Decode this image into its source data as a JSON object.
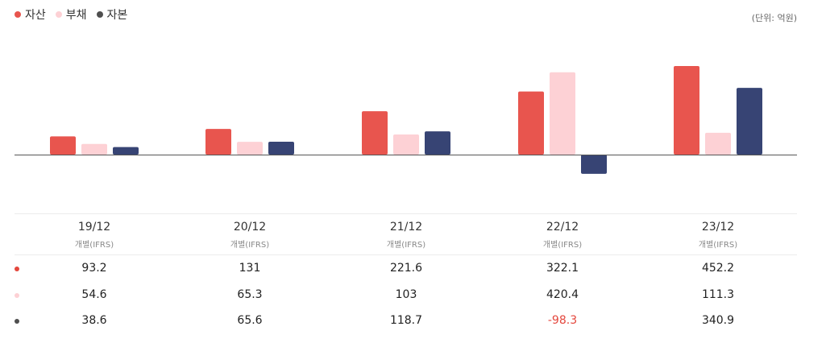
{
  "unit": "(단위: 억원)",
  "colors": {
    "assets": "#e8554e",
    "liabilities": "#fdd1d5",
    "equity": "#374474",
    "negative_text": "#e4473d"
  },
  "legend": [
    {
      "label": "자산",
      "color": "#e8554e"
    },
    {
      "label": "부채",
      "color": "#fdd1d5"
    },
    {
      "label": "자본",
      "color": "#4f4f4f"
    }
  ],
  "chart_data": {
    "type": "bar",
    "categories": [
      "19/12",
      "20/12",
      "21/12",
      "22/12",
      "23/12"
    ],
    "category_sublabel": "개별(IFRS)",
    "series": [
      {
        "name": "자산",
        "values": [
          93.2,
          131,
          221.6,
          322.1,
          452.2
        ]
      },
      {
        "name": "부채",
        "values": [
          54.6,
          65.3,
          103,
          420.4,
          111.3
        ]
      },
      {
        "name": "자본",
        "values": [
          38.6,
          65.6,
          118.7,
          -98.3,
          340.9
        ]
      }
    ],
    "grid": false,
    "legend_position": "top-left"
  },
  "table": {
    "rows": [
      {
        "dot_color": "#e4473d",
        "values": [
          "93.2",
          "131",
          "221.6",
          "322.1",
          "452.2"
        ]
      },
      {
        "dot_color": "#fdd1d5",
        "values": [
          "54.6",
          "65.3",
          "103",
          "420.4",
          "111.3"
        ]
      },
      {
        "dot_color": "#4f4f4f",
        "values": [
          "38.6",
          "65.6",
          "118.7",
          "-98.3",
          "340.9"
        ]
      }
    ]
  }
}
